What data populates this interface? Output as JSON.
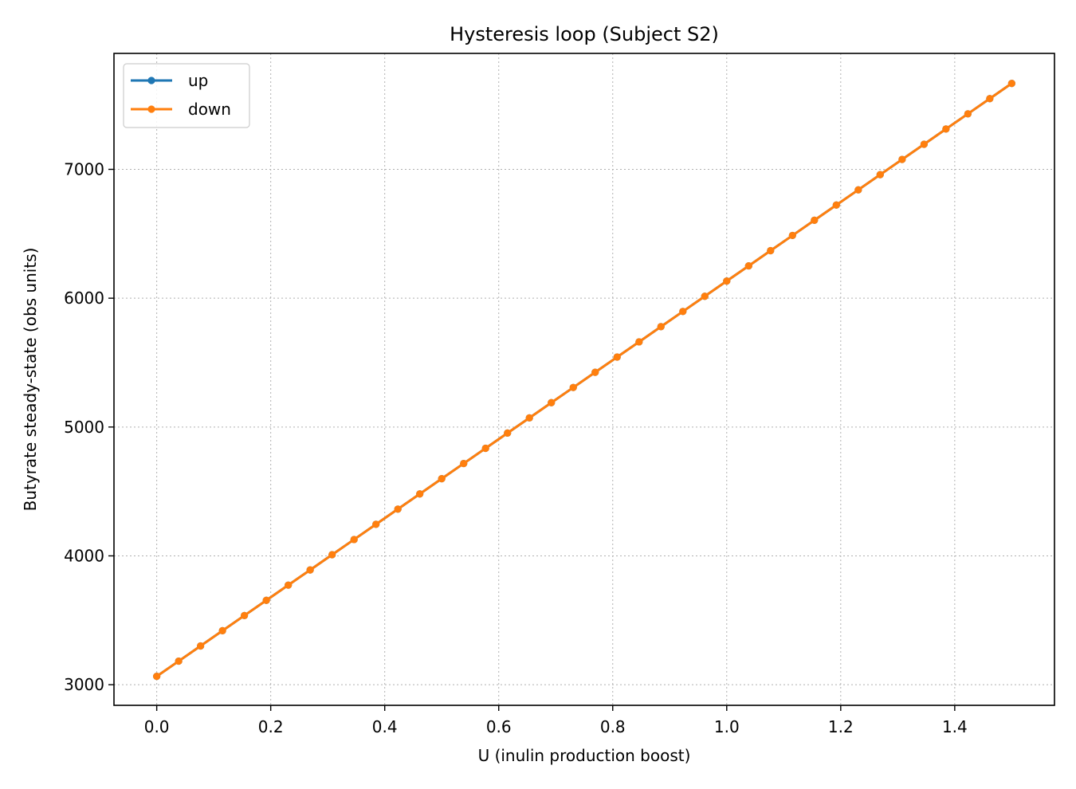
{
  "chart_data": {
    "type": "line",
    "title": "Hysteresis loop (Subject S2)",
    "xlabel": "U (inulin production boost)",
    "ylabel": "Butyrate steady-state (obs units)",
    "xlim": [
      -0.075,
      1.575
    ],
    "ylim": [
      2840,
      7900
    ],
    "xticks": [
      0.0,
      0.2,
      0.4,
      0.6,
      0.8,
      1.0,
      1.2,
      1.4
    ],
    "xtick_labels": [
      "0.0",
      "0.2",
      "0.4",
      "0.6",
      "0.8",
      "1.0",
      "1.2",
      "1.4"
    ],
    "yticks": [
      3000,
      4000,
      5000,
      6000,
      7000
    ],
    "ytick_labels": [
      "3000",
      "4000",
      "5000",
      "6000",
      "7000"
    ],
    "grid": true,
    "legend_position": "top-left",
    "x": [
      0.0,
      0.0385,
      0.0769,
      0.1154,
      0.1538,
      0.1923,
      0.2308,
      0.2692,
      0.3077,
      0.3462,
      0.3846,
      0.4231,
      0.4615,
      0.5,
      0.5385,
      0.5769,
      0.6154,
      0.6538,
      0.6923,
      0.7308,
      0.7692,
      0.8077,
      0.8462,
      0.8846,
      0.9231,
      0.9615,
      1.0,
      1.0385,
      1.0769,
      1.1154,
      1.1538,
      1.1923,
      1.2308,
      1.2692,
      1.3077,
      1.3462,
      1.3846,
      1.4231,
      1.4615,
      1.5
    ],
    "series": [
      {
        "name": "up",
        "color": "#1f77b4",
        "values": [
          3065,
          3183,
          3301,
          3419,
          3537,
          3655,
          3773,
          3891,
          4009,
          4127,
          4245,
          4363,
          4481,
          4599,
          4717,
          4835,
          4953,
          5071,
          5189,
          5307,
          5425,
          5543,
          5661,
          5779,
          5897,
          6015,
          6133,
          6251,
          6369,
          6487,
          6605,
          6723,
          6841,
          6959,
          7077,
          7195,
          7313,
          7431,
          7549,
          7667
        ]
      },
      {
        "name": "down",
        "color": "#ff7f0e",
        "values": [
          3065,
          3183,
          3301,
          3419,
          3537,
          3655,
          3773,
          3891,
          4009,
          4127,
          4245,
          4363,
          4481,
          4599,
          4717,
          4835,
          4953,
          5071,
          5189,
          5307,
          5425,
          5543,
          5661,
          5779,
          5897,
          6015,
          6133,
          6251,
          6369,
          6487,
          6605,
          6723,
          6841,
          6959,
          7077,
          7195,
          7313,
          7431,
          7549,
          7667
        ]
      }
    ]
  }
}
